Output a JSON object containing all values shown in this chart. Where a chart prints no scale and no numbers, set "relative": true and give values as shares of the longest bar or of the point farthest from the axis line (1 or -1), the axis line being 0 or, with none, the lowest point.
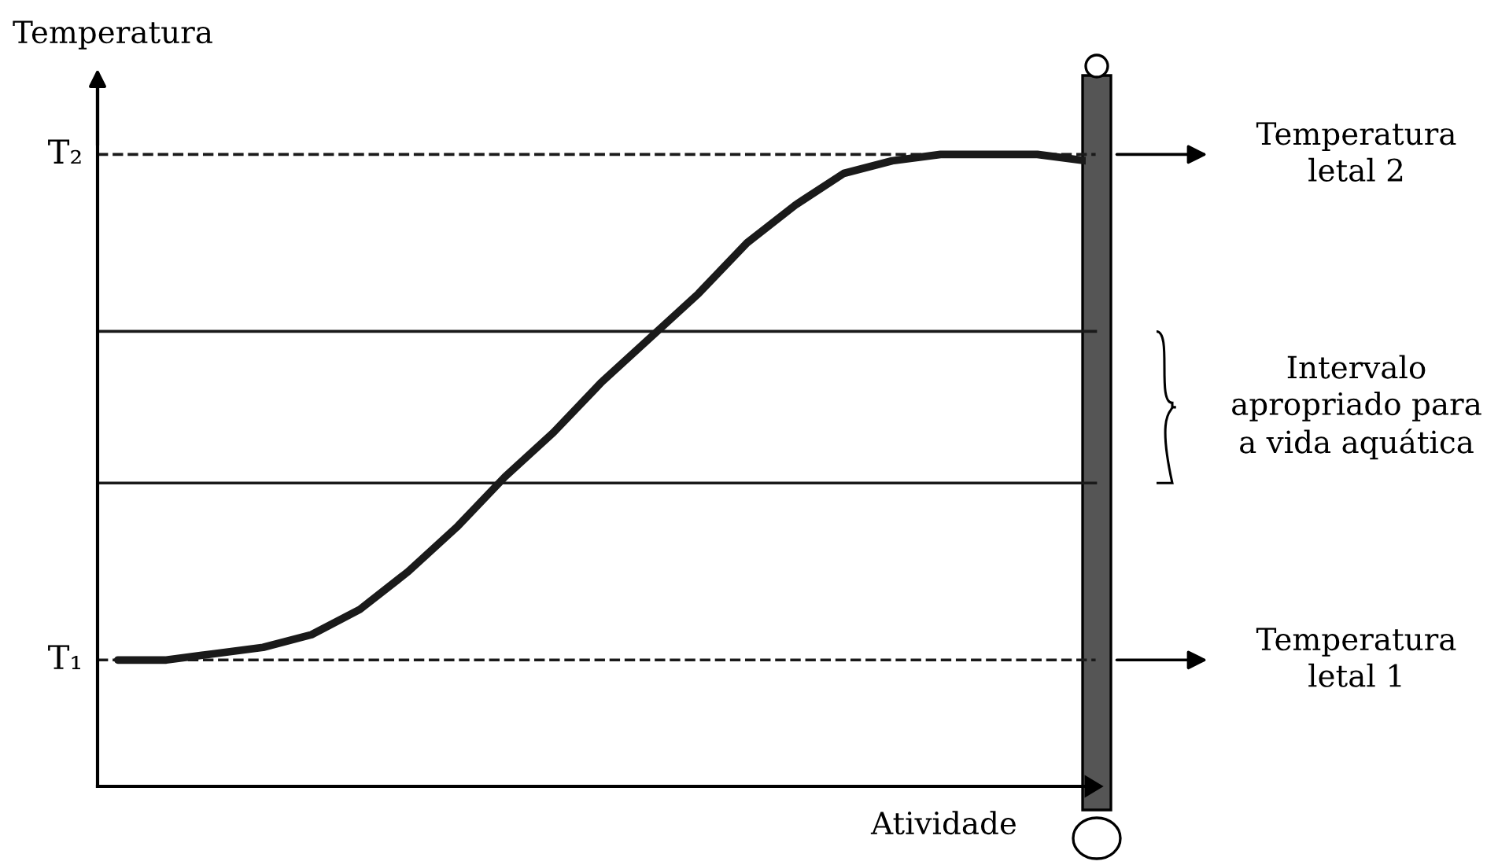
{
  "chart_data": {
    "type": "line",
    "relative": true,
    "ylabel": "Temperatura",
    "xlabel": "Atividade",
    "color": "#1a1a1a",
    "categories": [
      null,
      null,
      null,
      null,
      null,
      null,
      null,
      null,
      null,
      null,
      null,
      null,
      null,
      null,
      null,
      null,
      null,
      null,
      null,
      null,
      null
    ],
    "values": [
      0.2,
      0.2,
      0.21,
      0.22,
      0.24,
      0.28,
      0.34,
      0.41,
      0.49,
      0.56,
      0.64,
      0.71,
      0.78,
      0.86,
      0.92,
      0.97,
      0.99,
      1.0,
      1.0,
      1.0,
      0.99
    ],
    "ref_lines": [
      {
        "axis": "y",
        "value": 1.0,
        "label": "T₂",
        "line_style": "dashed",
        "color": "#1a1a1a"
      },
      {
        "axis": "y",
        "value": 0.72,
        "line_style": "solid",
        "color": "#1a1a1a"
      },
      {
        "axis": "y",
        "value": 0.48,
        "line_style": "solid",
        "color": "#1a1a1a"
      },
      {
        "axis": "y",
        "value": 0.2,
        "label": "T₁",
        "line_style": "dashed",
        "color": "#1a1a1a"
      }
    ],
    "annotations": [
      "Temperatura\nletal 2",
      "Intervalo\napropriado para\na vida aquática",
      "Temperatura\nletal 1"
    ],
    "marker": "none",
    "line_style": "solid"
  }
}
